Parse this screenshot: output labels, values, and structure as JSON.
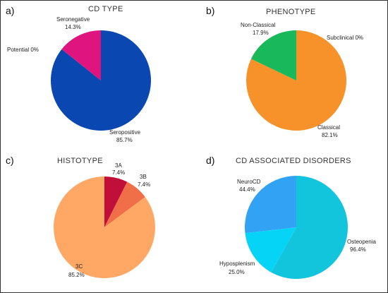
{
  "chart_data": [
    {
      "type": "pie",
      "panel": "a)",
      "title": "CD TYPE",
      "start_angle": 0,
      "slices": [
        {
          "label": "Seropositive",
          "value": 85.7,
          "display": "85.7%",
          "color": "#0a47b0"
        },
        {
          "label": "Potential 0%",
          "value": 0,
          "display": "",
          "color": "#999999"
        },
        {
          "label": "Seronegative",
          "value": 14.3,
          "display": "14.3%",
          "color": "#e0147f"
        }
      ]
    },
    {
      "type": "pie",
      "panel": "b)",
      "title": "PHENOTYPE",
      "start_angle": 0,
      "slices": [
        {
          "label": "Subclinical 0%",
          "value": 0,
          "display": "",
          "color": "#999999"
        },
        {
          "label": "Classical",
          "value": 82.1,
          "display": "82.1%",
          "color": "#f7922a"
        },
        {
          "label": "Non-Classical",
          "value": 17.9,
          "display": "17.9%",
          "color": "#19b85a"
        }
      ]
    },
    {
      "type": "pie",
      "panel": "c)",
      "title": "HISTOTYPE",
      "start_angle": 0,
      "slices": [
        {
          "label": "3A",
          "value": 7.4,
          "display": "7.4%",
          "color": "#c0103a"
        },
        {
          "label": "3B",
          "value": 7.4,
          "display": "7.4%",
          "color": "#f06e48"
        },
        {
          "label": "3C",
          "value": 85.2,
          "display": "85.2%",
          "color": "#ffa764"
        }
      ]
    },
    {
      "type": "pie",
      "panel": "d)",
      "title": "CD ASSOCIATED DISORDERS",
      "start_angle": 0,
      "slices": [
        {
          "label": "Osteopenia",
          "value": 96.4,
          "display": "96.4%",
          "color": "#12c4dc"
        },
        {
          "label": "Hyposplenism",
          "value": 25.0,
          "display": "25.0%",
          "color": "#06d4f6"
        },
        {
          "label": "NeuroCD",
          "value": 44.4,
          "display": "44.4%",
          "color": "#31a2f4"
        }
      ]
    }
  ]
}
